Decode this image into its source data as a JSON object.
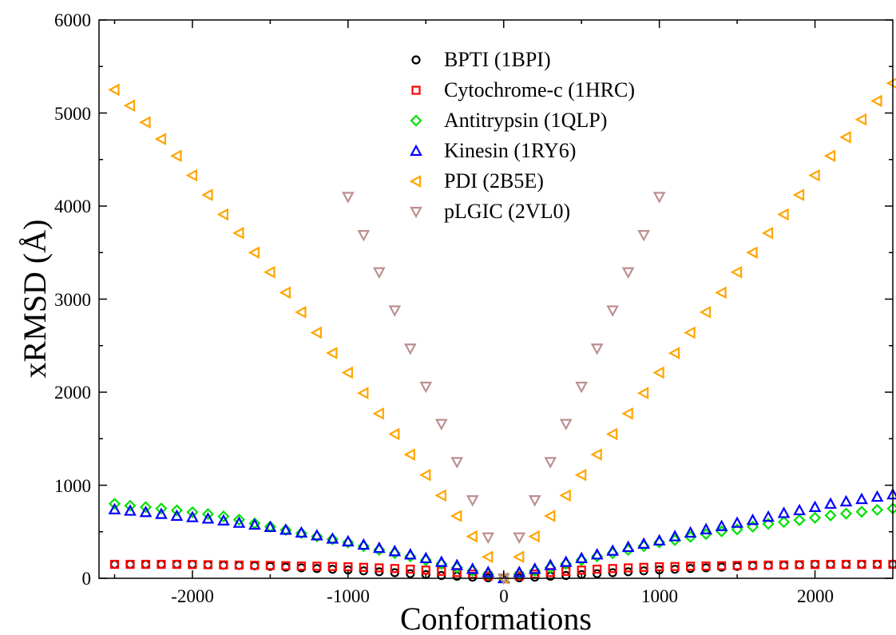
{
  "chart_data": {
    "type": "scatter",
    "xlabel": "Conformations",
    "ylabel": "xRMSD (Å)",
    "xlim": [
      -2600,
      2500
    ],
    "ylim": [
      0,
      6000
    ],
    "x_ticks": [
      -2000,
      -1000,
      0,
      1000,
      2000
    ],
    "y_ticks": [
      0,
      1000,
      2000,
      3000,
      4000,
      5000,
      6000
    ],
    "x_tick_labels": [
      "-2000",
      "-1000",
      "0",
      "1000",
      "2000"
    ],
    "y_tick_labels": [
      "0",
      "1000",
      "2000",
      "3000",
      "4000",
      "5000",
      "6000"
    ],
    "grid": false,
    "legend_position": "top-center",
    "series": [
      {
        "name": "BPTI (1BPI)",
        "marker": "circle",
        "color": "#000000",
        "x": [
          -2500,
          -2400,
          -2300,
          -2200,
          -2100,
          -2000,
          -1900,
          -1800,
          -1700,
          -1600,
          -1500,
          -1400,
          -1300,
          -1200,
          -1100,
          -1000,
          -900,
          -800,
          -700,
          -600,
          -500,
          -400,
          -300,
          -200,
          -100,
          0,
          100,
          200,
          300,
          400,
          500,
          600,
          700,
          800,
          900,
          1000,
          1100,
          1200,
          1300,
          1400,
          1500,
          1600,
          1700,
          1800,
          1900,
          2000,
          2100,
          2200,
          2300,
          2400,
          2500
        ],
        "y": [
          150,
          150,
          150,
          150,
          150,
          150,
          145,
          140,
          138,
          135,
          128,
          120,
          112,
          105,
          97,
          90,
          80,
          70,
          60,
          50,
          40,
          30,
          22,
          12,
          5,
          0,
          5,
          12,
          22,
          30,
          40,
          50,
          60,
          70,
          80,
          90,
          97,
          105,
          112,
          120,
          128,
          135,
          138,
          140,
          145,
          150,
          150,
          150,
          150,
          150,
          150
        ]
      },
      {
        "name": "Cytochrome-c (1HRC)",
        "marker": "square",
        "color": "#ff0000",
        "x": [
          -2500,
          -2400,
          -2300,
          -2200,
          -2100,
          -2000,
          -1900,
          -1800,
          -1700,
          -1600,
          -1500,
          -1400,
          -1300,
          -1200,
          -1100,
          -1000,
          -900,
          -800,
          -700,
          -600,
          -500,
          -400,
          -300,
          -200,
          -100,
          0,
          100,
          200,
          300,
          400,
          500,
          600,
          700,
          800,
          900,
          1000,
          1100,
          1200,
          1300,
          1400,
          1500,
          1600,
          1700,
          1800,
          1900,
          2000,
          2100,
          2200,
          2300,
          2400,
          2500
        ],
        "y": [
          150,
          150,
          150,
          150,
          150,
          148,
          146,
          144,
          142,
          140,
          138,
          135,
          132,
          130,
          127,
          124,
          118,
          112,
          105,
          98,
          88,
          75,
          62,
          45,
          25,
          0,
          25,
          45,
          62,
          75,
          88,
          98,
          105,
          112,
          118,
          124,
          127,
          130,
          132,
          135,
          138,
          140,
          142,
          144,
          146,
          148,
          150,
          150,
          150,
          150,
          150
        ]
      },
      {
        "name": "Antitrypsin (1QLP)",
        "marker": "diamond",
        "color": "#00e000",
        "x": [
          -2500,
          -2400,
          -2300,
          -2200,
          -2100,
          -2000,
          -1900,
          -1800,
          -1700,
          -1600,
          -1500,
          -1400,
          -1300,
          -1200,
          -1100,
          -1000,
          -900,
          -800,
          -700,
          -600,
          -500,
          -400,
          -300,
          -200,
          -100,
          0,
          100,
          200,
          300,
          400,
          500,
          600,
          700,
          800,
          900,
          1000,
          1100,
          1200,
          1300,
          1400,
          1500,
          1600,
          1700,
          1800,
          1900,
          2000,
          2100,
          2200,
          2300,
          2400,
          2500
        ],
        "y": [
          800,
          780,
          765,
          750,
          730,
          710,
          690,
          665,
          630,
          590,
          555,
          520,
          485,
          450,
          420,
          385,
          345,
          305,
          270,
          235,
          195,
          155,
          115,
          80,
          45,
          0,
          45,
          80,
          115,
          155,
          195,
          235,
          270,
          305,
          345,
          385,
          410,
          445,
          475,
          505,
          525,
          555,
          585,
          605,
          625,
          650,
          675,
          695,
          715,
          735,
          750
        ]
      },
      {
        "name": "Kinesin (1RY6)",
        "marker": "triangle-up",
        "color": "#0000ff",
        "x": [
          -2500,
          -2400,
          -2300,
          -2200,
          -2100,
          -2000,
          -1900,
          -1800,
          -1700,
          -1600,
          -1500,
          -1400,
          -1300,
          -1200,
          -1100,
          -1000,
          -900,
          -800,
          -700,
          -600,
          -500,
          -400,
          -300,
          -200,
          -100,
          0,
          100,
          200,
          300,
          400,
          500,
          600,
          700,
          800,
          900,
          1000,
          1100,
          1200,
          1300,
          1400,
          1500,
          1600,
          1700,
          1800,
          1900,
          2000,
          2100,
          2200,
          2300,
          2400,
          2500
        ],
        "y": [
          740,
          725,
          710,
          690,
          670,
          655,
          640,
          620,
          595,
          575,
          550,
          520,
          490,
          460,
          425,
          395,
          360,
          325,
          290,
          255,
          215,
          175,
          140,
          100,
          65,
          0,
          65,
          100,
          140,
          175,
          215,
          255,
          295,
          335,
          370,
          405,
          450,
          490,
          525,
          560,
          595,
          625,
          660,
          700,
          730,
          765,
          800,
          825,
          850,
          875,
          900
        ]
      },
      {
        "name": "PDI (2B5E)",
        "marker": "triangle-left",
        "color": "#ffa500",
        "x": [
          -2500,
          -2400,
          -2300,
          -2200,
          -2100,
          -2000,
          -1900,
          -1800,
          -1700,
          -1600,
          -1500,
          -1400,
          -1300,
          -1200,
          -1100,
          -1000,
          -900,
          -800,
          -700,
          -600,
          -500,
          -400,
          -300,
          -200,
          -100,
          0,
          100,
          200,
          300,
          400,
          500,
          600,
          700,
          800,
          900,
          1000,
          1100,
          1200,
          1300,
          1400,
          1500,
          1600,
          1700,
          1800,
          1900,
          2000,
          2100,
          2200,
          2300,
          2400,
          2500
        ],
        "y": [
          5250,
          5080,
          4900,
          4720,
          4540,
          4330,
          4120,
          3910,
          3710,
          3500,
          3290,
          3070,
          2860,
          2640,
          2420,
          2210,
          1990,
          1770,
          1550,
          1330,
          1110,
          890,
          670,
          450,
          230,
          0,
          230,
          450,
          670,
          890,
          1110,
          1330,
          1550,
          1770,
          1990,
          2210,
          2420,
          2640,
          2860,
          3070,
          3290,
          3500,
          3710,
          3910,
          4120,
          4330,
          4540,
          4740,
          4930,
          5130,
          5320
        ]
      },
      {
        "name": "pLGIC (2VL0)",
        "marker": "triangle-down",
        "color": "#bc8f8f",
        "x": [
          -1000,
          -900,
          -800,
          -700,
          -600,
          -500,
          -400,
          -300,
          -200,
          -100,
          0,
          100,
          200,
          300,
          400,
          500,
          600,
          700,
          800,
          900,
          1000
        ],
        "y": [
          4100,
          3690,
          3290,
          2880,
          2470,
          2060,
          1660,
          1250,
          840,
          440,
          0,
          440,
          840,
          1250,
          1660,
          2060,
          2470,
          2880,
          3290,
          3690,
          4100
        ]
      }
    ]
  }
}
